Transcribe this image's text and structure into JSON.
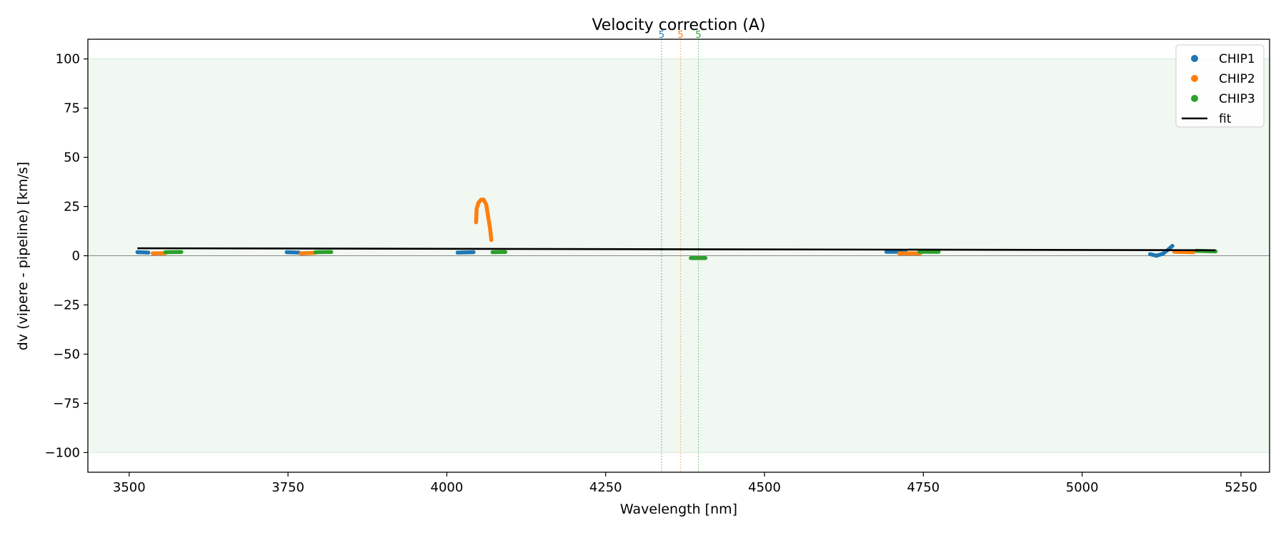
{
  "chart_data": {
    "type": "scatter",
    "title": "Velocity correction (A)",
    "xlabel": "Wavelength [nm]",
    "ylabel": "dv (vipere - pipeline) [km/s]",
    "xlim": [
      3435,
      5295
    ],
    "ylim": [
      -110,
      110
    ],
    "xticks": [
      3500,
      3750,
      4000,
      4250,
      4500,
      4750,
      5000,
      5250
    ],
    "xtick_labels": [
      "3500",
      "3750",
      "4000",
      "4250",
      "4500",
      "4750",
      "5000",
      "5250"
    ],
    "yticks": [
      100,
      75,
      50,
      25,
      0,
      -25,
      -50,
      -75,
      -100
    ],
    "ytick_labels": [
      "100",
      "75",
      "50",
      "25",
      "0",
      "−25",
      "−50",
      "−75",
      "−100"
    ],
    "band": {
      "y_min": -100,
      "y_max": 100,
      "color": "#e6f3e6"
    },
    "zero_line": {
      "y": 0,
      "color": "#888888"
    },
    "series": [
      {
        "name": "CHIP1",
        "color": "#1f77b4",
        "segments": [
          {
            "x": [
              3513,
              3530
            ],
            "y": [
              1.8,
              1.6
            ]
          },
          {
            "x": [
              3748,
              3767
            ],
            "y": [
              1.8,
              1.6
            ]
          },
          {
            "x": [
              4017,
              4042
            ],
            "y": [
              1.6,
              1.8
            ]
          },
          {
            "x": [
              4692,
              4722
            ],
            "y": [
              2.0,
              2.0
            ]
          },
          {
            "x": [
              5107,
              5117,
              5127,
              5135,
              5142
            ],
            "y": [
              0.8,
              0.0,
              1.0,
              3.0,
              5.0
            ]
          }
        ]
      },
      {
        "name": "CHIP2",
        "color": "#ff7f0e",
        "segments": [
          {
            "x": [
              3537,
              3557
            ],
            "y": [
              1.2,
              1.3
            ]
          },
          {
            "x": [
              3770,
              3793
            ],
            "y": [
              1.2,
              1.5
            ]
          },
          {
            "x": [
              4046,
              4047,
              4050,
              4054,
              4058,
              4062,
              4065,
              4068,
              4070
            ],
            "y": [
              17,
              24,
              27,
              28.5,
              28.5,
              26,
              20,
              14,
              8
            ]
          },
          {
            "x": [
              4712,
              4745
            ],
            "y": [
              1.2,
              1.2
            ]
          },
          {
            "x": [
              5145,
              5175
            ],
            "y": [
              2.0,
              1.8
            ]
          }
        ]
      },
      {
        "name": "CHIP3",
        "color": "#2ca02c",
        "segments": [
          {
            "x": [
              3557,
              3582
            ],
            "y": [
              1.8,
              1.9
            ]
          },
          {
            "x": [
              3793,
              3818
            ],
            "y": [
              1.8,
              1.9
            ]
          },
          {
            "x": [
              4072,
              4092
            ],
            "y": [
              1.8,
              1.9
            ]
          },
          {
            "x": [
              4384,
              4407
            ],
            "y": [
              -1.2,
              -1.2
            ]
          },
          {
            "x": [
              4744,
              4774
            ],
            "y": [
              2.0,
              2.0
            ]
          },
          {
            "x": [
              5180,
              5210
            ],
            "y": [
              2.5,
              2.2
            ]
          }
        ]
      }
    ],
    "fit": {
      "name": "fit",
      "color": "#000000",
      "x": [
        3513,
        5210
      ],
      "y": [
        3.8,
        2.8
      ]
    },
    "vlines": [
      {
        "x": 4338,
        "label": "5",
        "color": "#1f77b4"
      },
      {
        "x": 4368,
        "label": "5",
        "color": "#ff7f0e"
      },
      {
        "x": 4396,
        "label": "5",
        "color": "#2ca02c"
      }
    ],
    "legend": {
      "location": "top-right",
      "entries": [
        "CHIP1",
        "CHIP2",
        "CHIP3",
        "fit"
      ]
    }
  }
}
